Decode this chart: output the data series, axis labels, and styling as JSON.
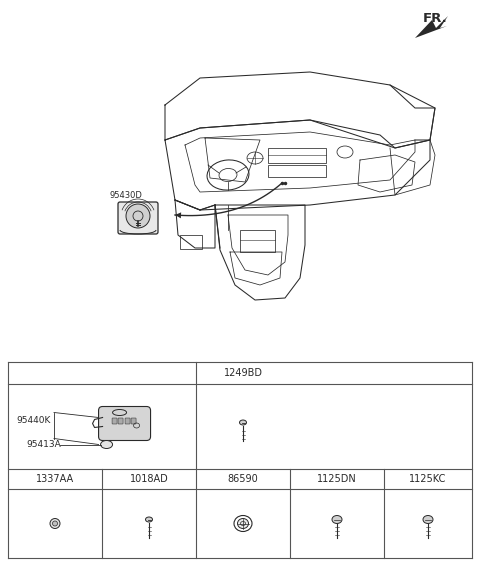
{
  "bg_color": "#ffffff",
  "lc": "#2a2a2a",
  "grid_color": "#555555",
  "label_95430D": "95430D",
  "label_95440K": "95440K",
  "label_95413A": "95413A",
  "label_1249BD": "1249BD",
  "label_1337AA": "1337AA",
  "label_1018AD": "1018AD",
  "label_86590": "86590",
  "label_1125DN": "1125DN",
  "label_1125KC": "1125KC",
  "label_fr": "FR.",
  "fs_label": 6.5,
  "fs_part": 7.0,
  "fs_fr": 9.5
}
